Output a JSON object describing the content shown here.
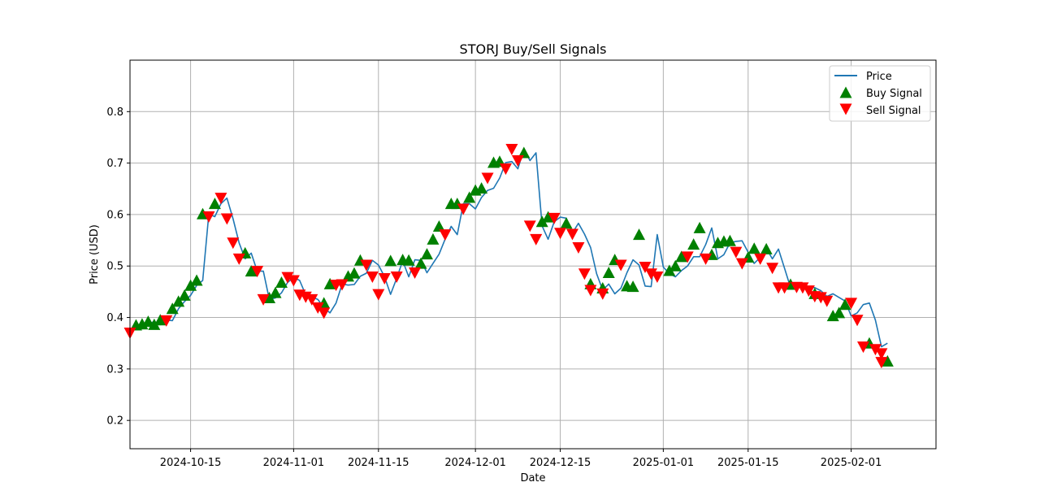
{
  "chart_data": {
    "type": "line",
    "title": "STORJ Buy/Sell Signals",
    "xlabel": "Date",
    "ylabel": "Price (USD)",
    "x_axis_type": "date",
    "xlim": [
      "2024-10-05",
      "2025-02-15"
    ],
    "ylim": [
      0.145,
      0.9
    ],
    "x_ticks": [
      "2024-10-15",
      "2024-11-01",
      "2024-11-15",
      "2024-12-01",
      "2024-12-15",
      "2025-01-01",
      "2025-01-15",
      "2025-02-01"
    ],
    "y_ticks": [
      "0.2",
      "0.3",
      "0.4",
      "0.5",
      "0.6",
      "0.7",
      "0.8"
    ],
    "grid": true,
    "legend_position": "top-right",
    "legend": [
      "Price",
      "Buy Signal",
      "Sell Signal"
    ],
    "colors": {
      "price": "#1f77b4",
      "buy": "#008000",
      "sell": "#ff0000",
      "grid": "#b0b0b0"
    },
    "price_dates": [
      "2024-10-05",
      "2024-10-06",
      "2024-10-07",
      "2024-10-08",
      "2024-10-09",
      "2024-10-10",
      "2024-10-11",
      "2024-10-12",
      "2024-10-13",
      "2024-10-14",
      "2024-10-15",
      "2024-10-16",
      "2024-10-17",
      "2024-10-18",
      "2024-10-19",
      "2024-10-20",
      "2024-10-21",
      "2024-10-22",
      "2024-10-23",
      "2024-10-24",
      "2024-10-25",
      "2024-10-26",
      "2024-10-27",
      "2024-10-28",
      "2024-10-29",
      "2024-10-30",
      "2024-10-31",
      "2024-11-01",
      "2024-11-02",
      "2024-11-03",
      "2024-11-04",
      "2024-11-05",
      "2024-11-06",
      "2024-11-07",
      "2024-11-08",
      "2024-11-09",
      "2024-11-10",
      "2024-11-11",
      "2024-11-12",
      "2024-11-13",
      "2024-11-14",
      "2024-11-15",
      "2024-11-16",
      "2024-11-17",
      "2024-11-18",
      "2024-11-19",
      "2024-11-20",
      "2024-11-21",
      "2024-11-22",
      "2024-11-23",
      "2024-11-24",
      "2024-11-25",
      "2024-11-26",
      "2024-11-27",
      "2024-11-28",
      "2024-11-29",
      "2024-11-30",
      "2024-12-01",
      "2024-12-02",
      "2024-12-03",
      "2024-12-04",
      "2024-12-05",
      "2024-12-06",
      "2024-12-07",
      "2024-12-08",
      "2024-12-09",
      "2024-12-10",
      "2024-12-11",
      "2024-12-12",
      "2024-12-13",
      "2024-12-14",
      "2024-12-15",
      "2024-12-16",
      "2024-12-17",
      "2024-12-18",
      "2024-12-19",
      "2024-12-20",
      "2024-12-21",
      "2024-12-22",
      "2024-12-23",
      "2024-12-24",
      "2024-12-25",
      "2024-12-26",
      "2024-12-27",
      "2024-12-28",
      "2024-12-29",
      "2024-12-30",
      "2024-12-31",
      "2025-01-01",
      "2025-01-02",
      "2025-01-03",
      "2025-01-04",
      "2025-01-05",
      "2025-01-06",
      "2025-01-07",
      "2025-01-08",
      "2025-01-09",
      "2025-01-10",
      "2025-01-11",
      "2025-01-12",
      "2025-01-13",
      "2025-01-14",
      "2025-01-15",
      "2025-01-16",
      "2025-01-17",
      "2025-01-18",
      "2025-01-19",
      "2025-01-20",
      "2025-01-21",
      "2025-01-22",
      "2025-01-23",
      "2025-01-24",
      "2025-01-25",
      "2025-01-26",
      "2025-01-27",
      "2025-01-28",
      "2025-01-29",
      "2025-01-30",
      "2025-01-31",
      "2025-02-01",
      "2025-02-02",
      "2025-02-03",
      "2025-02-04",
      "2025-02-05",
      "2025-02-06",
      "2025-02-07"
    ],
    "price_values": [
      0.37,
      0.38,
      0.385,
      0.388,
      0.392,
      0.386,
      0.395,
      0.394,
      0.417,
      0.431,
      0.443,
      0.462,
      0.472,
      0.601,
      0.596,
      0.621,
      0.632,
      0.592,
      0.545,
      0.514,
      0.525,
      0.49,
      0.49,
      0.435,
      0.438,
      0.448,
      0.468,
      0.478,
      0.472,
      0.444,
      0.44,
      0.435,
      0.419,
      0.409,
      0.428,
      0.465,
      0.463,
      0.464,
      0.48,
      0.486,
      0.511,
      0.502,
      0.479,
      0.445,
      0.476,
      0.51,
      0.479,
      0.512,
      0.511,
      0.487,
      0.505,
      0.523,
      0.552,
      0.577,
      0.561,
      0.621,
      0.621,
      0.611,
      0.633,
      0.647,
      0.651,
      0.671,
      0.701,
      0.703,
      0.689,
      0.727,
      0.705,
      0.72,
      0.578,
      0.552,
      0.586,
      0.595,
      0.593,
      0.564,
      0.583,
      0.562,
      0.536,
      0.485,
      0.453,
      0.465,
      0.446,
      0.457,
      0.487,
      0.512,
      0.502,
      0.461,
      0.46,
      0.561,
      0.498,
      0.485,
      0.479,
      0.491,
      0.5,
      0.518,
      0.518,
      0.542,
      0.574,
      0.514,
      0.522,
      0.545,
      0.548,
      0.549,
      0.527,
      0.505,
      0.517,
      0.534,
      0.514,
      0.533,
      0.496,
      0.458,
      0.458,
      0.464,
      0.459,
      0.458,
      0.452,
      0.441,
      0.446,
      0.439,
      0.432,
      0.403,
      0.409,
      0.425,
      0.428,
      0.395,
      0.343,
      0.35,
      0.338,
      0.33,
      0.313,
      0.315
    ],
    "buy_signals": [
      {
        "date": "2024-10-06",
        "value": 0.385
      },
      {
        "date": "2024-10-07",
        "value": 0.387
      },
      {
        "date": "2024-10-08",
        "value": 0.392
      },
      {
        "date": "2024-10-09",
        "value": 0.386
      },
      {
        "date": "2024-10-10",
        "value": 0.395
      },
      {
        "date": "2024-10-12",
        "value": 0.417
      },
      {
        "date": "2024-10-13",
        "value": 0.431
      },
      {
        "date": "2024-10-14",
        "value": 0.443
      },
      {
        "date": "2024-10-15",
        "value": 0.462
      },
      {
        "date": "2024-10-16",
        "value": 0.472
      },
      {
        "date": "2024-10-17",
        "value": 0.601
      },
      {
        "date": "2024-10-19",
        "value": 0.621
      },
      {
        "date": "2024-10-24",
        "value": 0.525
      },
      {
        "date": "2024-10-25",
        "value": 0.49
      },
      {
        "date": "2024-10-28",
        "value": 0.438
      },
      {
        "date": "2024-10-29",
        "value": 0.448
      },
      {
        "date": "2024-10-30",
        "value": 0.468
      },
      {
        "date": "2024-11-06",
        "value": 0.428
      },
      {
        "date": "2024-11-07",
        "value": 0.465
      },
      {
        "date": "2024-11-10",
        "value": 0.48
      },
      {
        "date": "2024-11-11",
        "value": 0.486
      },
      {
        "date": "2024-11-12",
        "value": 0.511
      },
      {
        "date": "2024-11-17",
        "value": 0.51
      },
      {
        "date": "2024-11-19",
        "value": 0.512
      },
      {
        "date": "2024-11-20",
        "value": 0.511
      },
      {
        "date": "2024-11-22",
        "value": 0.505
      },
      {
        "date": "2024-11-23",
        "value": 0.523
      },
      {
        "date": "2024-11-24",
        "value": 0.552
      },
      {
        "date": "2024-11-25",
        "value": 0.577
      },
      {
        "date": "2024-11-27",
        "value": 0.621
      },
      {
        "date": "2024-11-28",
        "value": 0.621
      },
      {
        "date": "2024-11-30",
        "value": 0.633
      },
      {
        "date": "2024-12-01",
        "value": 0.647
      },
      {
        "date": "2024-12-02",
        "value": 0.651
      },
      {
        "date": "2024-12-04",
        "value": 0.701
      },
      {
        "date": "2024-12-05",
        "value": 0.703
      },
      {
        "date": "2024-12-09",
        "value": 0.72
      },
      {
        "date": "2024-12-12",
        "value": 0.586
      },
      {
        "date": "2024-12-13",
        "value": 0.595
      },
      {
        "date": "2024-12-16",
        "value": 0.583
      },
      {
        "date": "2024-12-20",
        "value": 0.465
      },
      {
        "date": "2024-12-22",
        "value": 0.457
      },
      {
        "date": "2024-12-23",
        "value": 0.487
      },
      {
        "date": "2024-12-24",
        "value": 0.512
      },
      {
        "date": "2024-12-26",
        "value": 0.461
      },
      {
        "date": "2024-12-27",
        "value": 0.46
      },
      {
        "date": "2024-12-28",
        "value": 0.561
      },
      {
        "date": "2025-01-02",
        "value": 0.491
      },
      {
        "date": "2025-01-03",
        "value": 0.5
      },
      {
        "date": "2025-01-04",
        "value": 0.518
      },
      {
        "date": "2025-01-06",
        "value": 0.542
      },
      {
        "date": "2025-01-07",
        "value": 0.574
      },
      {
        "date": "2025-01-09",
        "value": 0.522
      },
      {
        "date": "2025-01-10",
        "value": 0.545
      },
      {
        "date": "2025-01-11",
        "value": 0.548
      },
      {
        "date": "2025-01-12",
        "value": 0.549
      },
      {
        "date": "2025-01-15",
        "value": 0.517
      },
      {
        "date": "2025-01-16",
        "value": 0.534
      },
      {
        "date": "2025-01-18",
        "value": 0.533
      },
      {
        "date": "2025-01-22",
        "value": 0.464
      },
      {
        "date": "2025-01-26",
        "value": 0.446
      },
      {
        "date": "2025-01-29",
        "value": 0.403
      },
      {
        "date": "2025-01-30",
        "value": 0.409
      },
      {
        "date": "2025-01-31",
        "value": 0.425
      },
      {
        "date": "2025-02-04",
        "value": 0.35
      },
      {
        "date": "2025-02-07",
        "value": 0.315
      }
    ],
    "sell_signals": [
      {
        "date": "2024-10-05",
        "value": 0.37
      },
      {
        "date": "2024-10-11",
        "value": 0.394
      },
      {
        "date": "2024-10-18",
        "value": 0.596
      },
      {
        "date": "2024-10-20",
        "value": 0.632
      },
      {
        "date": "2024-10-21",
        "value": 0.592
      },
      {
        "date": "2024-10-22",
        "value": 0.545
      },
      {
        "date": "2024-10-23",
        "value": 0.514
      },
      {
        "date": "2024-10-26",
        "value": 0.49
      },
      {
        "date": "2024-10-27",
        "value": 0.435
      },
      {
        "date": "2024-10-31",
        "value": 0.478
      },
      {
        "date": "2024-11-01",
        "value": 0.472
      },
      {
        "date": "2024-11-02",
        "value": 0.444
      },
      {
        "date": "2024-11-03",
        "value": 0.44
      },
      {
        "date": "2024-11-04",
        "value": 0.435
      },
      {
        "date": "2024-11-05",
        "value": 0.419
      },
      {
        "date": "2024-11-06",
        "value": 0.409
      },
      {
        "date": "2024-11-08",
        "value": 0.463
      },
      {
        "date": "2024-11-09",
        "value": 0.464
      },
      {
        "date": "2024-11-13",
        "value": 0.502
      },
      {
        "date": "2024-11-14",
        "value": 0.479
      },
      {
        "date": "2024-11-15",
        "value": 0.445
      },
      {
        "date": "2024-11-16",
        "value": 0.476
      },
      {
        "date": "2024-11-18",
        "value": 0.479
      },
      {
        "date": "2024-11-21",
        "value": 0.487
      },
      {
        "date": "2024-11-26",
        "value": 0.561
      },
      {
        "date": "2024-11-29",
        "value": 0.611
      },
      {
        "date": "2024-12-03",
        "value": 0.671
      },
      {
        "date": "2024-12-06",
        "value": 0.689
      },
      {
        "date": "2024-12-07",
        "value": 0.727
      },
      {
        "date": "2024-12-08",
        "value": 0.705
      },
      {
        "date": "2024-12-10",
        "value": 0.578
      },
      {
        "date": "2024-12-11",
        "value": 0.552
      },
      {
        "date": "2024-12-14",
        "value": 0.593
      },
      {
        "date": "2024-12-15",
        "value": 0.564
      },
      {
        "date": "2024-12-17",
        "value": 0.562
      },
      {
        "date": "2024-12-18",
        "value": 0.536
      },
      {
        "date": "2024-12-19",
        "value": 0.485
      },
      {
        "date": "2024-12-20",
        "value": 0.453
      },
      {
        "date": "2024-12-22",
        "value": 0.446
      },
      {
        "date": "2024-12-25",
        "value": 0.502
      },
      {
        "date": "2024-12-29",
        "value": 0.498
      },
      {
        "date": "2024-12-30",
        "value": 0.485
      },
      {
        "date": "2024-12-31",
        "value": 0.479
      },
      {
        "date": "2025-01-05",
        "value": 0.518
      },
      {
        "date": "2025-01-08",
        "value": 0.514
      },
      {
        "date": "2025-01-13",
        "value": 0.527
      },
      {
        "date": "2025-01-14",
        "value": 0.505
      },
      {
        "date": "2025-01-17",
        "value": 0.514
      },
      {
        "date": "2025-01-19",
        "value": 0.496
      },
      {
        "date": "2025-01-20",
        "value": 0.458
      },
      {
        "date": "2025-01-21",
        "value": 0.458
      },
      {
        "date": "2025-01-23",
        "value": 0.459
      },
      {
        "date": "2025-01-24",
        "value": 0.458
      },
      {
        "date": "2025-01-25",
        "value": 0.452
      },
      {
        "date": "2025-01-26",
        "value": 0.441
      },
      {
        "date": "2025-01-27",
        "value": 0.439
      },
      {
        "date": "2025-01-28",
        "value": 0.432
      },
      {
        "date": "2025-02-01",
        "value": 0.428
      },
      {
        "date": "2025-02-02",
        "value": 0.395
      },
      {
        "date": "2025-02-03",
        "value": 0.343
      },
      {
        "date": "2025-02-05",
        "value": 0.338
      },
      {
        "date": "2025-02-06",
        "value": 0.33
      },
      {
        "date": "2025-02-06",
        "value": 0.313
      }
    ]
  }
}
